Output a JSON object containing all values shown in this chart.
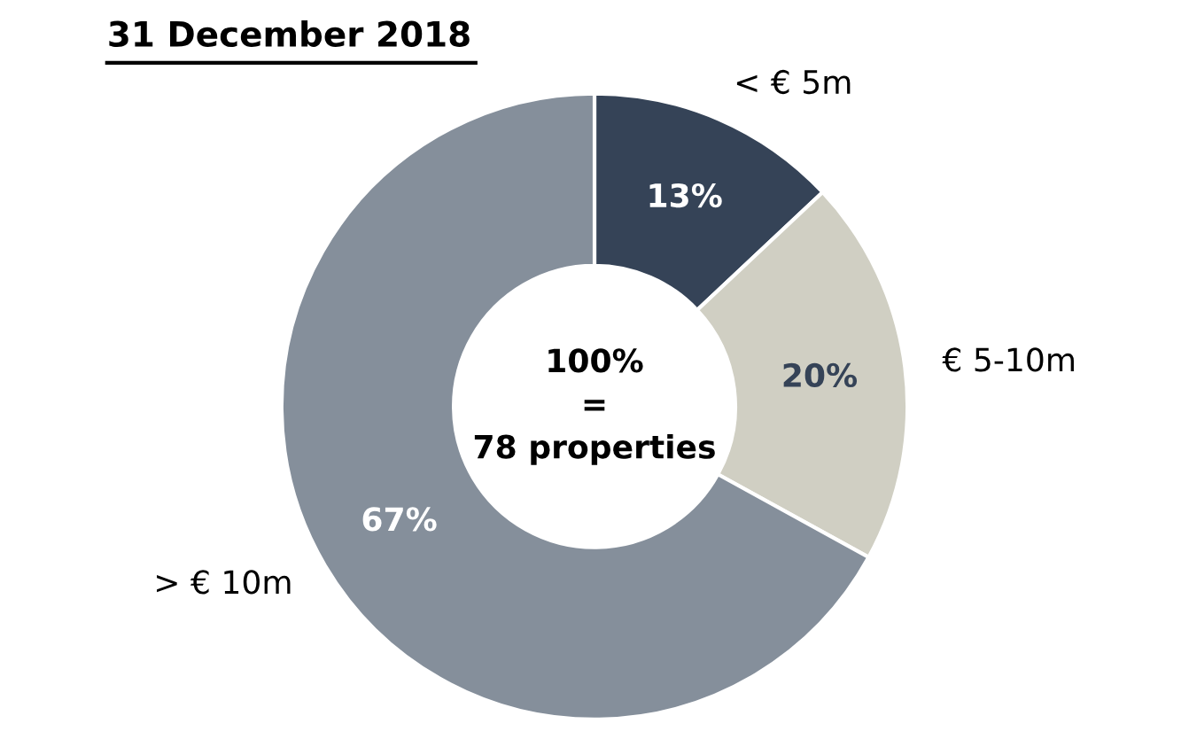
{
  "chart_data": {
    "type": "donut",
    "title": "31 December 2018",
    "categories": [
      "< € 5m",
      "€ 5-10m",
      "> € 10m"
    ],
    "values": [
      13,
      20,
      67
    ],
    "colors": [
      "#354357",
      "#d0cfc3",
      "#858f9b"
    ],
    "value_labels": [
      "13%",
      "20%",
      "67%"
    ],
    "annotations": [
      "100%\n=\n78 properties"
    ]
  }
}
